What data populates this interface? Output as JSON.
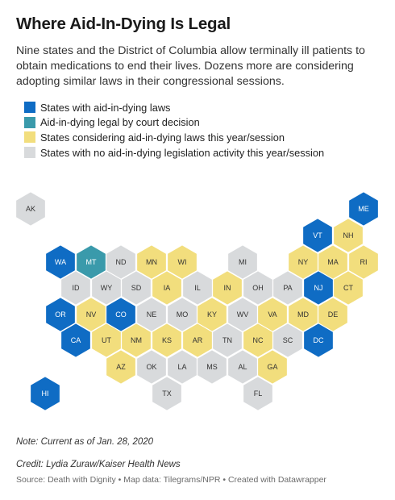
{
  "title": "Where Aid-In-Dying Is Legal",
  "subtitle": "Nine states and the District of Columbia allow terminally ill patients to obtain medications to end their lives. Dozens more are considering adopting similar laws in their congressional sessions.",
  "colors": {
    "legal": "#0f6cc4",
    "court": "#3a9aab",
    "considering": "#f2de7d",
    "none": "#d8dadc"
  },
  "legend": [
    {
      "key": "legal",
      "label": "States with aid-in-dying laws"
    },
    {
      "key": "court",
      "label": "Aid-in-dying legal by court decision"
    },
    {
      "key": "considering",
      "label": "States considering aid-in-dying laws this year/session"
    },
    {
      "key": "none",
      "label": "States with no aid-in-dying legislation activity this year/session"
    }
  ],
  "states": [
    {
      "abbr": "AK",
      "status": "none"
    },
    {
      "abbr": "ME",
      "status": "legal"
    },
    {
      "abbr": "VT",
      "status": "legal"
    },
    {
      "abbr": "NH",
      "status": "considering"
    },
    {
      "abbr": "WA",
      "status": "legal"
    },
    {
      "abbr": "MT",
      "status": "court"
    },
    {
      "abbr": "ND",
      "status": "none"
    },
    {
      "abbr": "MN",
      "status": "considering"
    },
    {
      "abbr": "WI",
      "status": "considering"
    },
    {
      "abbr": "MI",
      "status": "none"
    },
    {
      "abbr": "NY",
      "status": "considering"
    },
    {
      "abbr": "MA",
      "status": "considering"
    },
    {
      "abbr": "RI",
      "status": "considering"
    },
    {
      "abbr": "ID",
      "status": "none"
    },
    {
      "abbr": "WY",
      "status": "none"
    },
    {
      "abbr": "SD",
      "status": "none"
    },
    {
      "abbr": "IA",
      "status": "considering"
    },
    {
      "abbr": "IL",
      "status": "none"
    },
    {
      "abbr": "IN",
      "status": "considering"
    },
    {
      "abbr": "OH",
      "status": "none"
    },
    {
      "abbr": "PA",
      "status": "none"
    },
    {
      "abbr": "NJ",
      "status": "legal"
    },
    {
      "abbr": "CT",
      "status": "considering"
    },
    {
      "abbr": "OR",
      "status": "legal"
    },
    {
      "abbr": "NV",
      "status": "considering"
    },
    {
      "abbr": "CO",
      "status": "legal"
    },
    {
      "abbr": "NE",
      "status": "none"
    },
    {
      "abbr": "MO",
      "status": "none"
    },
    {
      "abbr": "KY",
      "status": "considering"
    },
    {
      "abbr": "WV",
      "status": "none"
    },
    {
      "abbr": "VA",
      "status": "considering"
    },
    {
      "abbr": "MD",
      "status": "considering"
    },
    {
      "abbr": "DE",
      "status": "considering"
    },
    {
      "abbr": "CA",
      "status": "legal"
    },
    {
      "abbr": "UT",
      "status": "considering"
    },
    {
      "abbr": "NM",
      "status": "considering"
    },
    {
      "abbr": "KS",
      "status": "considering"
    },
    {
      "abbr": "AR",
      "status": "considering"
    },
    {
      "abbr": "TN",
      "status": "none"
    },
    {
      "abbr": "NC",
      "status": "considering"
    },
    {
      "abbr": "SC",
      "status": "none"
    },
    {
      "abbr": "DC",
      "status": "legal"
    },
    {
      "abbr": "AZ",
      "status": "considering"
    },
    {
      "abbr": "OK",
      "status": "none"
    },
    {
      "abbr": "LA",
      "status": "none"
    },
    {
      "abbr": "MS",
      "status": "none"
    },
    {
      "abbr": "AL",
      "status": "none"
    },
    {
      "abbr": "GA",
      "status": "considering"
    },
    {
      "abbr": "HI",
      "status": "legal"
    },
    {
      "abbr": "TX",
      "status": "none"
    },
    {
      "abbr": "FL",
      "status": "none"
    }
  ],
  "note": "Note: Current as of Jan. 28, 2020",
  "credit": "Credit: Lydia Zuraw/Kaiser Health News",
  "source": "Source: Death with Dignity • Map data: Tilegrams/NPR • Created with Datawrapper"
}
